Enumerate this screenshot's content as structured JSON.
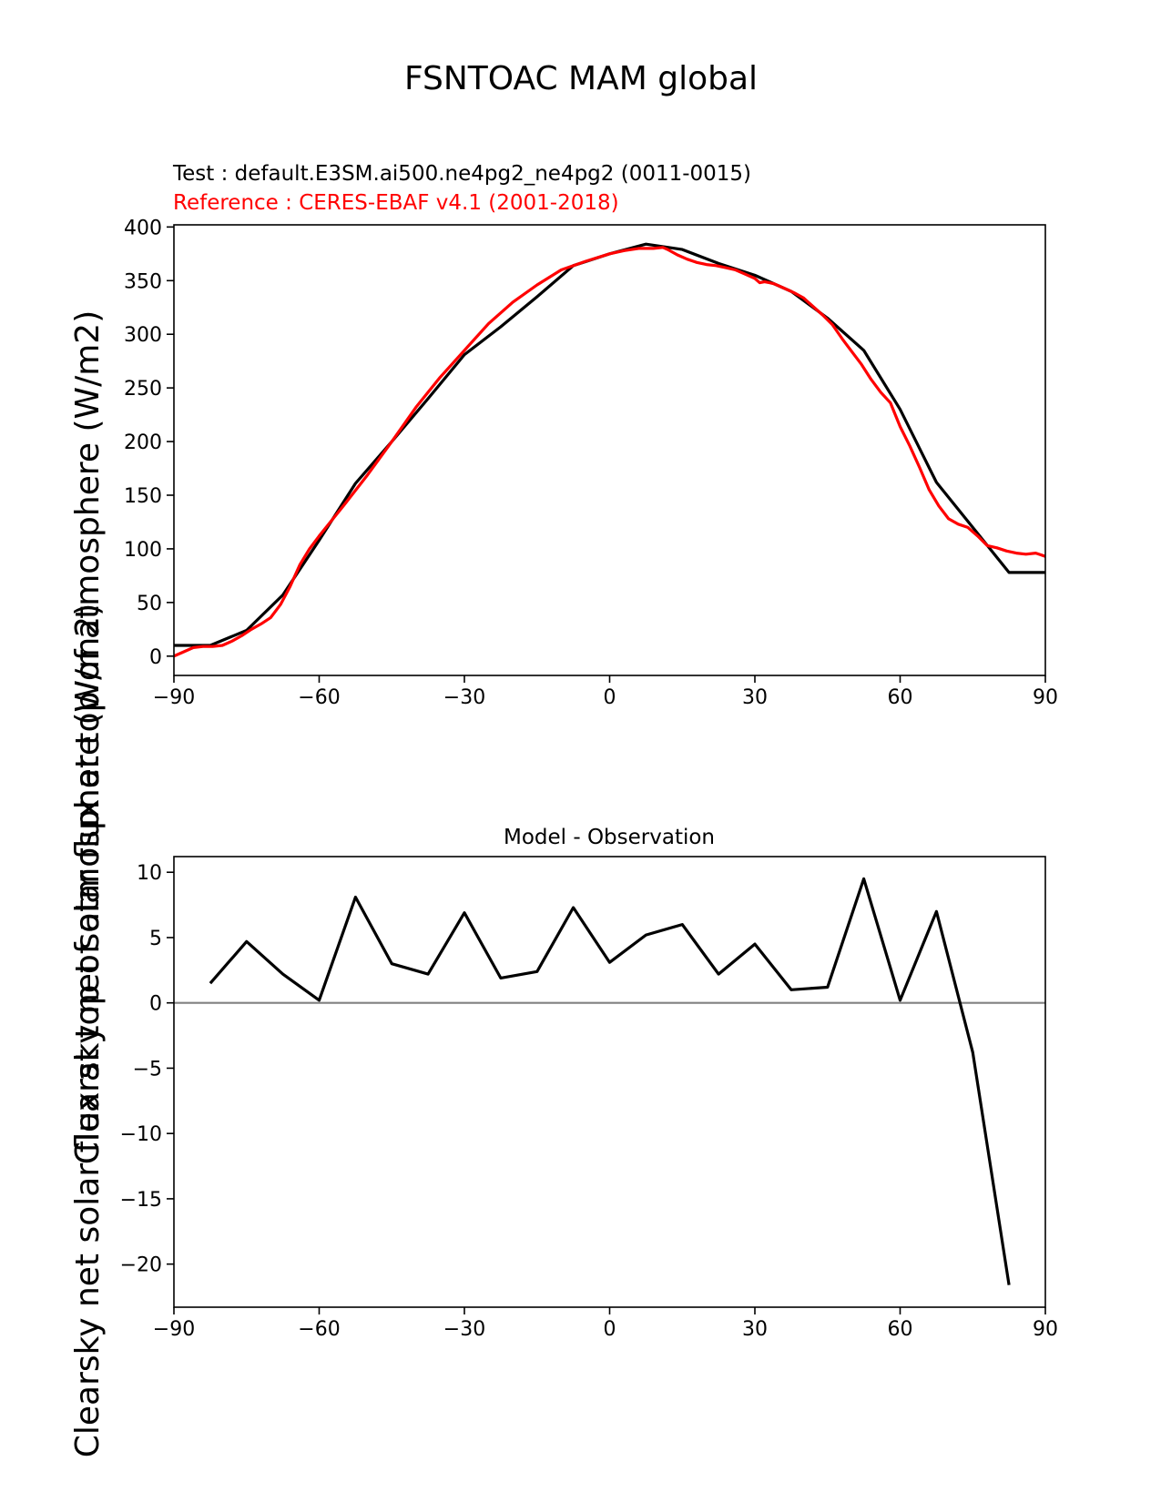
{
  "figure": {
    "title": "FSNTOAC MAM global",
    "ylabel_top": "Clearsky net solar flux at top of atmosphere (W/m2)",
    "ylabel_bottom": "Clearsky net solar flux at top of atmosphere (W/m2)"
  },
  "chart_data": [
    {
      "type": "line",
      "test_label": "Test : default.E3SM.ai500.ne4pg2_ne4pg2 (0011-0015)",
      "reference_label": "Reference : CERES-EBAF v4.1 (2001-2018)",
      "xlim": [
        -90,
        90
      ],
      "ylim": [
        -18,
        402
      ],
      "xticks": [
        -90,
        -60,
        -30,
        0,
        30,
        60,
        90
      ],
      "yticks": [
        0,
        50,
        100,
        150,
        200,
        250,
        300,
        350,
        400
      ],
      "colors": {
        "test": "#000000",
        "reference": "#ff0000"
      },
      "series": [
        {
          "role": "test",
          "x": [
            -90,
            -82.5,
            -75,
            -67.5,
            -60,
            -52.5,
            -45,
            -37.5,
            -30,
            -22.5,
            -15,
            -7.5,
            0,
            7.5,
            15,
            22.5,
            30,
            37.5,
            45,
            52.5,
            60,
            67.5,
            75,
            82.5,
            90
          ],
          "y": [
            10,
            10,
            24,
            57,
            108,
            161,
            200,
            240,
            281,
            307,
            335,
            364,
            375,
            384,
            379,
            366,
            355,
            340,
            315,
            285,
            230,
            162,
            120,
            78,
            78
          ]
        },
        {
          "role": "reference",
          "x": [
            -90,
            -88,
            -86,
            -84,
            -82,
            -80,
            -78,
            -76,
            -74,
            -72,
            -70,
            -68,
            -66,
            -64,
            -62,
            -60,
            -55,
            -50,
            -45,
            -40,
            -35,
            -30,
            -25,
            -20,
            -15,
            -10,
            -5,
            0,
            3,
            6,
            9,
            11,
            12,
            14,
            16,
            18,
            20,
            22,
            24,
            26,
            28,
            30,
            31,
            32,
            33,
            34,
            36,
            38,
            40,
            42,
            44,
            46,
            48,
            50,
            52,
            54,
            56,
            58,
            60,
            62,
            64,
            66,
            68,
            70,
            72,
            74,
            76,
            78,
            80,
            82,
            84,
            86,
            88,
            90
          ],
          "y": [
            0,
            4,
            8,
            9,
            9,
            10,
            14,
            19,
            25,
            30,
            36,
            48,
            65,
            85,
            100,
            112,
            140,
            169,
            200,
            232,
            260,
            285,
            310,
            330,
            346,
            360,
            368,
            375,
            378,
            380,
            380,
            381,
            379,
            374,
            370,
            367,
            365,
            364,
            362,
            360,
            356,
            352,
            348,
            349,
            348,
            347,
            343,
            339,
            334,
            326,
            318,
            309,
            296,
            284,
            272,
            258,
            246,
            236,
            214,
            196,
            176,
            155,
            140,
            128,
            123,
            120,
            112,
            103,
            101,
            98,
            96,
            95,
            96,
            93
          ]
        }
      ]
    },
    {
      "type": "line",
      "title": "Model - Observation",
      "xlim": [
        -90,
        90
      ],
      "ylim": [
        -23.3,
        11.2
      ],
      "xticks": [
        -90,
        -60,
        -30,
        0,
        30,
        60,
        90
      ],
      "yticks": [
        -20,
        -15,
        -10,
        -5,
        0,
        5,
        10
      ],
      "colors": {
        "difference": "#000000",
        "zero_line": "#808080"
      },
      "series": [
        {
          "role": "difference",
          "x": [
            -82.5,
            -75,
            -67.5,
            -60,
            -52.5,
            -45,
            -37.5,
            -30,
            -22.5,
            -15,
            -7.5,
            0,
            7.5,
            15,
            22.5,
            30,
            37.5,
            45,
            52.5,
            60,
            67.5,
            75,
            82.5
          ],
          "y": [
            1.5,
            4.7,
            2.2,
            0.2,
            8.1,
            3.0,
            2.2,
            6.9,
            1.9,
            2.4,
            7.3,
            3.1,
            5.2,
            6.0,
            2.2,
            4.5,
            1.0,
            1.2,
            9.5,
            0.2,
            7.0,
            -3.8,
            -21.6
          ]
        }
      ]
    }
  ]
}
